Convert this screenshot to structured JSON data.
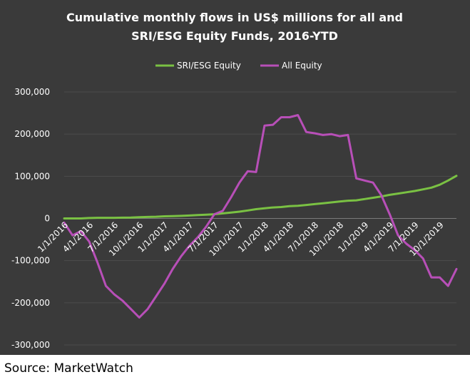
{
  "chart_data": {
    "type": "line",
    "title_lines": [
      "Cumulative monthly flows in US$ millions for all and",
      "SRI/ESG Equity Funds, 2016-YTD"
    ],
    "xlabel": "",
    "ylabel": "",
    "ylim": [
      -300000,
      300000
    ],
    "yticks": [
      -300000,
      -200000,
      -100000,
      0,
      100000,
      200000,
      300000
    ],
    "ytick_labels": [
      "-300,000",
      "-200,000",
      "-100,000",
      "0",
      "100,000",
      "200,000",
      "300,000"
    ],
    "x_tick_labels": [
      "1/1/2016",
      "4/1/2016",
      "7/1/2016",
      "10/1/2016",
      "1/1/2017",
      "4/1/2017",
      "7/1/2017",
      "10/1/2017",
      "1/1/2018",
      "4/1/2018",
      "7/1/2018",
      "10/1/2018",
      "1/1/2019",
      "4/1/2019",
      "7/1/2019",
      "10/1/2019"
    ],
    "x": [
      "1/1/2016",
      "2/1/2016",
      "3/1/2016",
      "4/1/2016",
      "5/1/2016",
      "6/1/2016",
      "7/1/2016",
      "8/1/2016",
      "9/1/2016",
      "10/1/2016",
      "11/1/2016",
      "12/1/2016",
      "1/1/2017",
      "2/1/2017",
      "3/1/2017",
      "4/1/2017",
      "5/1/2017",
      "6/1/2017",
      "7/1/2017",
      "8/1/2017",
      "9/1/2017",
      "10/1/2017",
      "11/1/2017",
      "12/1/2017",
      "1/1/2018",
      "2/1/2018",
      "3/1/2018",
      "4/1/2018",
      "5/1/2018",
      "6/1/2018",
      "7/1/2018",
      "8/1/2018",
      "9/1/2018",
      "10/1/2018",
      "11/1/2018",
      "12/1/2018",
      "1/1/2019",
      "2/1/2019",
      "3/1/2019",
      "4/1/2019",
      "5/1/2019",
      "6/1/2019",
      "7/1/2019",
      "8/1/2019",
      "9/1/2019",
      "10/1/2019",
      "11/1/2019",
      "12/1/2019"
    ],
    "grid": true,
    "legend_position": "top",
    "series": [
      {
        "name": "SRI/ESG Equity",
        "color": "#7ac143",
        "values": [
          0,
          0,
          0,
          1000,
          1500,
          1500,
          1500,
          1800,
          2000,
          3000,
          3500,
          4000,
          5000,
          5500,
          6000,
          7000,
          8000,
          9000,
          10000,
          12000,
          14000,
          16000,
          19000,
          22000,
          24000,
          26000,
          27000,
          29000,
          30000,
          32000,
          34000,
          36000,
          38000,
          40000,
          42000,
          43000,
          46000,
          49000,
          52000,
          56000,
          59000,
          62000,
          65000,
          69000,
          73000,
          80000,
          90000,
          101000
        ]
      },
      {
        "name": "All Equity",
        "color": "#b84fb8",
        "values": [
          -10000,
          -40000,
          -30000,
          -55000,
          -105000,
          -160000,
          -180000,
          -195000,
          -215000,
          -235000,
          -215000,
          -185000,
          -155000,
          -120000,
          -90000,
          -65000,
          -45000,
          -20000,
          10000,
          18000,
          50000,
          85000,
          112000,
          110000,
          220000,
          222000,
          240000,
          240000,
          245000,
          205000,
          202000,
          198000,
          200000,
          195000,
          198000,
          95000,
          90000,
          85000,
          55000,
          10000,
          -40000,
          -60000,
          -75000,
          -95000,
          -140000,
          -140000,
          -160000,
          -120000
        ]
      }
    ]
  },
  "source": "Source: MarketWatch"
}
